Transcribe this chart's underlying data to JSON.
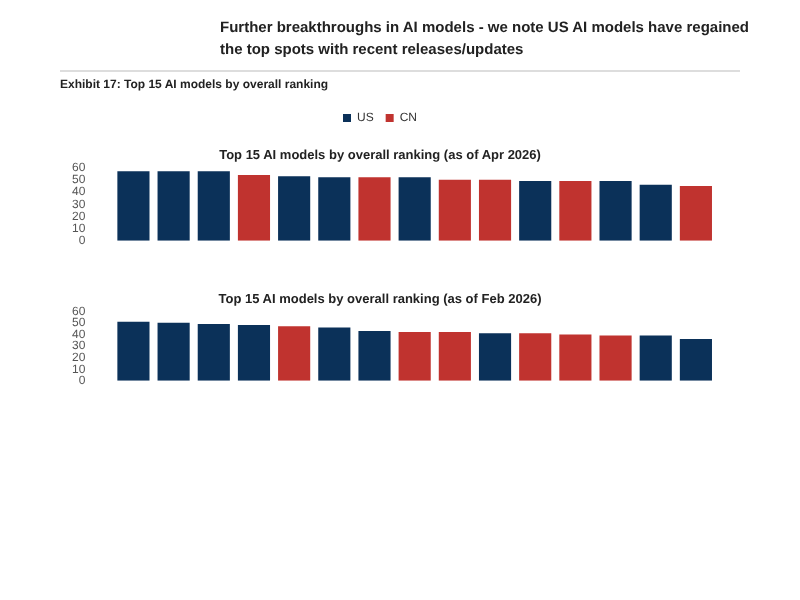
{
  "chart_data": [
    {
      "type": "bar",
      "title": "Top 15 AI models by overall ranking (as of Apr 2026)",
      "annotations": [
        "Further breakthroughs in AI models - we note US AI models have regained the top spots with recent releases/updates",
        "Exhibit 17: Top 15 AI models by overall ranking"
      ],
      "categories": [
        null,
        null,
        null,
        null,
        null,
        null,
        null,
        null,
        null,
        null,
        null,
        null,
        null,
        null,
        null
      ],
      "series": [
        {
          "name": "US",
          "color": "#0b3159",
          "values": [
            57,
            57,
            57,
            null,
            53,
            52,
            null,
            52,
            null,
            null,
            49,
            null,
            49,
            46,
            null
          ]
        },
        {
          "name": "CN",
          "color": "#c0332f",
          "values": [
            null,
            null,
            null,
            54,
            null,
            null,
            52,
            null,
            50,
            50,
            null,
            49,
            null,
            null,
            45
          ]
        }
      ],
      "ylim": [
        0,
        60
      ],
      "yticks": [
        0,
        10,
        20,
        30,
        40,
        50,
        60
      ],
      "grid": false,
      "legend": "top",
      "stacked": true
    },
    {
      "type": "bar",
      "title": "Top 15 AI models by overall ranking (as of Feb 2026)",
      "categories": [
        null,
        null,
        null,
        null,
        null,
        null,
        null,
        null,
        null,
        null,
        null,
        null,
        null,
        null,
        null
      ],
      "series": [
        {
          "color": "#0b3159",
          "values": [
            51,
            50,
            49,
            48,
            null,
            46,
            43,
            null,
            null,
            41,
            null,
            null,
            null,
            39,
            36
          ]
        },
        {
          "color": "#c0332f",
          "values": [
            null,
            null,
            null,
            null,
            47,
            null,
            null,
            42,
            42,
            null,
            41,
            40,
            39,
            null,
            null
          ]
        }
      ],
      "ylim": [
        0,
        60
      ],
      "yticks": [
        0,
        10,
        20,
        30,
        40,
        50,
        60
      ],
      "grid": false,
      "stacked": true
    }
  ]
}
